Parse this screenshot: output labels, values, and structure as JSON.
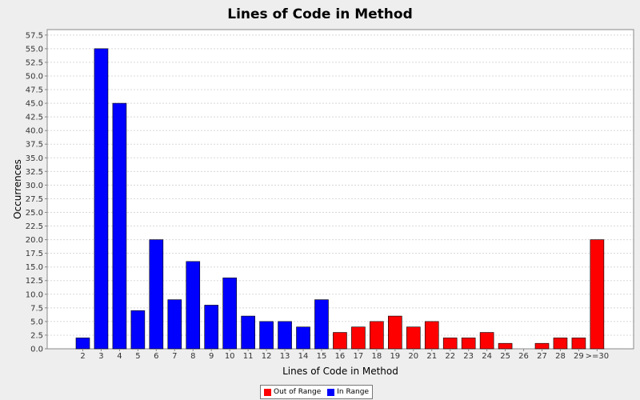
{
  "chart_data": {
    "type": "bar",
    "title": "Lines of Code in Method",
    "xlabel": "Lines of Code in Method",
    "ylabel": "Occurrences",
    "ylim": [
      0,
      58.5
    ],
    "y_ticks": [
      "0.0",
      "2.5",
      "5.0",
      "7.5",
      "10.0",
      "12.5",
      "15.0",
      "17.5",
      "20.0",
      "22.5",
      "25.0",
      "27.5",
      "30.0",
      "32.5",
      "35.0",
      "37.5",
      "40.0",
      "42.5",
      "45.0",
      "47.5",
      "50.0",
      "52.5",
      "55.0",
      "57.5"
    ],
    "grid": true,
    "legend_position": "bottom",
    "categories": [
      "2",
      "3",
      "4",
      "5",
      "6",
      "7",
      "8",
      "9",
      "10",
      "11",
      "12",
      "13",
      "14",
      "15",
      "16",
      "17",
      "18",
      "19",
      "20",
      "21",
      "22",
      "23",
      "24",
      "25",
      "26",
      "27",
      "28",
      "29",
      ">=30"
    ],
    "values": [
      2,
      55,
      45,
      7,
      20,
      9,
      16,
      8,
      13,
      6,
      5,
      5,
      4,
      9,
      3,
      4,
      5,
      6,
      4,
      5,
      2,
      2,
      3,
      1,
      0,
      1,
      2,
      2,
      20
    ],
    "bar_status": [
      "in",
      "in",
      "in",
      "in",
      "in",
      "in",
      "in",
      "in",
      "in",
      "in",
      "in",
      "in",
      "in",
      "in",
      "out",
      "out",
      "out",
      "out",
      "out",
      "out",
      "out",
      "out",
      "out",
      "out",
      "out",
      "out",
      "out",
      "out",
      "out"
    ],
    "series": [
      {
        "name": "Out of Range",
        "color": "#ff0000"
      },
      {
        "name": "In Range",
        "color": "#0000ff"
      }
    ]
  },
  "legend": {
    "out_label": "Out of Range",
    "in_label": "In Range"
  }
}
